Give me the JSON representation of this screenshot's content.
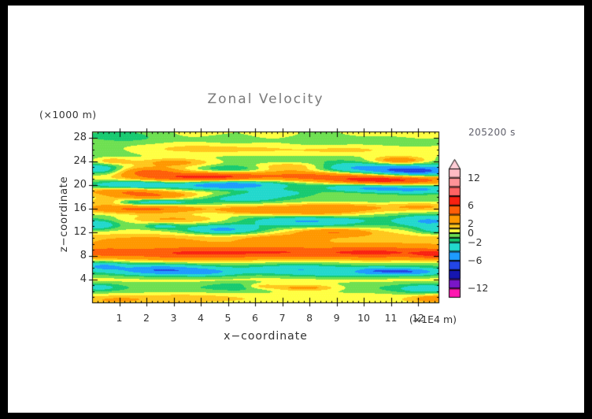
{
  "title": "Zonal Velocity",
  "timestamp": "205200 s",
  "axes": {
    "x": {
      "title": "x−coordinate",
      "unit_label": "(×1E4 m)",
      "min": 0,
      "max": 12.78,
      "tick_values": [
        1,
        2,
        3,
        4,
        5,
        6,
        7,
        8,
        9,
        10,
        11,
        12
      ],
      "tick_labels": [
        "1",
        "2",
        "3",
        "4",
        "5",
        "6",
        "7",
        "8",
        "9",
        "10",
        "11",
        "12"
      ],
      "minor_step": 0.2
    },
    "z": {
      "title": "z−coordinate",
      "unit_label": "(×1000 m)",
      "min": 0,
      "max": 29,
      "tick_values": [
        28,
        24,
        20,
        16,
        12,
        8,
        4
      ],
      "tick_labels": [
        "28",
        "24",
        "20",
        "16",
        "12",
        "8",
        "4"
      ],
      "minor_step": 1
    }
  },
  "colorbar": {
    "labels": [
      {
        "value": 12,
        "text": "12"
      },
      {
        "value": 6,
        "text": "6"
      },
      {
        "value": 2,
        "text": "2"
      },
      {
        "value": 0,
        "text": "0"
      },
      {
        "value": -2,
        "text": "−2"
      },
      {
        "value": -6,
        "text": "−6"
      },
      {
        "value": -12,
        "text": "−12"
      }
    ],
    "arrow": "up"
  },
  "chart_data": {
    "type": "filled_contour",
    "title": "Zonal Velocity",
    "xlabel": "x−coordinate",
    "ylabel": "z−coordinate",
    "x_unit": "×1E4 m",
    "z_unit": "×1000 m",
    "time_label": "205200 s",
    "x_range": [
      0,
      12.78
    ],
    "z_range": [
      0,
      29
    ],
    "value_unit_note": "zonal velocity, contour levels in same units as colorbar labels",
    "levels": [
      -14,
      -12,
      -10,
      -8,
      -6,
      -4,
      -2,
      -1,
      0,
      1,
      2,
      4,
      6,
      8,
      10,
      12,
      14
    ],
    "labeled_levels": [
      12,
      6,
      2,
      0,
      -2,
      -6,
      -12
    ],
    "palette": [
      "#ff17b0",
      "#ff17b0",
      "#7a16c8",
      "#1616b0",
      "#2346e6",
      "#1e9bff",
      "#22d8cd",
      "#17ca70",
      "#6ee051",
      "#ffff42",
      "#ffc71c",
      "#ff9800",
      "#ff5e08",
      "#f92111",
      "#ff6464",
      "#ff9398",
      "#ffbac4",
      "#ffcdd6"
    ],
    "grid_texture": "fine white stipple",
    "field_model": {
      "kind": "sum-of-gaussians",
      "note": "approximation of the depicted velocity field; base_bands=[z0,sigma_z,amp] (x-uniform), blobs=[x0,z0,sigma_x,sigma_z,amp]",
      "base_bands": [
        [
          28.5,
          1.6,
          -0.75
        ],
        [
          25.8,
          0.9,
          0.9
        ],
        [
          24.2,
          0.8,
          -0.9
        ],
        [
          22.8,
          0.6,
          0.5
        ],
        [
          21.5,
          0.8,
          1.1
        ],
        [
          20.0,
          0.6,
          -1.0
        ],
        [
          18.7,
          0.6,
          0.9
        ],
        [
          17.3,
          0.6,
          -0.7
        ],
        [
          16.0,
          0.7,
          1.0
        ],
        [
          14.6,
          0.8,
          -0.9
        ],
        [
          13.2,
          0.9,
          -0.6
        ],
        [
          11.3,
          1.1,
          0.9
        ],
        [
          9.0,
          1.4,
          1.6
        ],
        [
          5.6,
          1.0,
          -1.6
        ],
        [
          4.0,
          0.7,
          1.0
        ],
        [
          2.6,
          0.9,
          -1.1
        ],
        [
          0.9,
          0.9,
          1.0
        ]
      ],
      "blobs": [
        [
          3.6,
          28.6,
          1.3,
          0.9,
          1.2
        ],
        [
          6.8,
          28.2,
          1.1,
          0.9,
          1.3
        ],
        [
          9.9,
          28.4,
          1.3,
          0.9,
          1.2
        ],
        [
          12.4,
          28.3,
          0.9,
          0.8,
          1.1
        ],
        [
          1.6,
          28.0,
          1.2,
          0.9,
          -0.9
        ],
        [
          5.2,
          27.3,
          1.1,
          0.8,
          -0.9
        ],
        [
          8.2,
          27.4,
          1.2,
          0.9,
          -1.1
        ],
        [
          11.2,
          26.9,
          1.4,
          1.0,
          -0.9
        ],
        [
          4.6,
          26.4,
          1.8,
          0.7,
          1.1
        ],
        [
          9.6,
          26.1,
          1.6,
          0.7,
          1.0
        ],
        [
          0.6,
          25.7,
          0.9,
          0.7,
          -0.9
        ],
        [
          0.7,
          24.0,
          0.5,
          0.45,
          2.6
        ],
        [
          3.0,
          23.8,
          1.1,
          0.55,
          3.2
        ],
        [
          11.3,
          24.1,
          0.75,
          0.5,
          4.2
        ],
        [
          7.5,
          23.1,
          1.1,
          0.5,
          2.6
        ],
        [
          0.3,
          22.6,
          0.6,
          0.7,
          -4.0
        ],
        [
          5.1,
          22.7,
          1.0,
          0.5,
          -3.0
        ],
        [
          9.4,
          22.9,
          1.2,
          0.6,
          -4.0
        ],
        [
          11.9,
          22.3,
          1.3,
          0.7,
          -8.0
        ],
        [
          2.1,
          22.2,
          0.8,
          0.5,
          3.4
        ],
        [
          2.9,
          21.2,
          1.2,
          0.55,
          3.4
        ],
        [
          4.9,
          21.3,
          1.2,
          0.6,
          5.0
        ],
        [
          7.8,
          21.5,
          1.0,
          0.6,
          3.2
        ],
        [
          9.9,
          20.9,
          1.1,
          0.6,
          3.6
        ],
        [
          11.5,
          20.7,
          1.5,
          0.7,
          5.5
        ],
        [
          1.5,
          20.0,
          1.0,
          0.55,
          -3.6
        ],
        [
          5.0,
          20.0,
          1.3,
          0.6,
          -5.5
        ],
        [
          9.8,
          19.5,
          1.0,
          0.55,
          -3.0
        ],
        [
          11.9,
          19.2,
          1.4,
          0.6,
          -5.0
        ],
        [
          1.2,
          19.0,
          0.9,
          0.5,
          3.0
        ],
        [
          2.2,
          18.0,
          1.0,
          0.55,
          4.0
        ],
        [
          6.9,
          18.6,
          1.1,
          0.5,
          -3.2
        ],
        [
          5.6,
          17.8,
          0.9,
          0.5,
          -2.6
        ],
        [
          2.3,
          17.0,
          1.2,
          0.5,
          -4.0
        ],
        [
          0.5,
          17.2,
          0.5,
          0.45,
          2.6
        ],
        [
          1.9,
          16.0,
          1.4,
          0.6,
          4.2
        ],
        [
          5.8,
          15.7,
          0.8,
          0.45,
          2.4
        ],
        [
          8.7,
          16.1,
          1.3,
          0.55,
          3.0
        ],
        [
          12.1,
          16.4,
          0.8,
          0.5,
          1.6
        ],
        [
          3.0,
          14.2,
          1.5,
          0.55,
          3.2
        ],
        [
          8.0,
          15.0,
          1.4,
          0.5,
          2.6
        ],
        [
          7.9,
          13.9,
          1.4,
          0.65,
          -3.4
        ],
        [
          12.4,
          13.8,
          0.8,
          0.7,
          -3.4
        ],
        [
          0.2,
          13.2,
          0.5,
          0.6,
          -3.0
        ],
        [
          2.6,
          13.0,
          0.45,
          0.35,
          -2.2
        ],
        [
          4.8,
          12.4,
          1.0,
          0.55,
          -4.6
        ],
        [
          12.6,
          12.3,
          0.5,
          0.5,
          -2.4
        ],
        [
          8.9,
          12.0,
          1.0,
          0.5,
          3.4
        ],
        [
          7.0,
          10.8,
          0.9,
          0.45,
          2.2
        ],
        [
          2.0,
          10.6,
          1.2,
          0.5,
          1.2
        ],
        [
          3.5,
          8.4,
          2.0,
          0.8,
          4.6
        ],
        [
          6.9,
          8.6,
          1.5,
          0.7,
          3.0
        ],
        [
          10.5,
          8.5,
          1.7,
          0.75,
          4.8
        ],
        [
          12.7,
          8.2,
          0.6,
          0.6,
          3.5
        ],
        [
          0.4,
          8.6,
          0.7,
          0.6,
          2.5
        ],
        [
          0.4,
          6.3,
          0.55,
          0.5,
          -3.2
        ],
        [
          2.5,
          5.6,
          1.1,
          0.65,
          -4.6
        ],
        [
          4.3,
          5.2,
          0.8,
          0.5,
          -2.6
        ],
        [
          7.6,
          5.7,
          1.2,
          0.55,
          -2.4
        ],
        [
          9.6,
          4.9,
          1.4,
          0.45,
          -1.8
        ],
        [
          10.4,
          5.5,
          0.5,
          0.4,
          -3.4
        ],
        [
          11.3,
          5.4,
          0.45,
          0.4,
          -3.4
        ],
        [
          12.1,
          5.3,
          0.5,
          0.4,
          -3.0
        ],
        [
          0.3,
          2.7,
          0.5,
          0.5,
          -1.8
        ],
        [
          5.6,
          2.9,
          0.8,
          0.5,
          -1.6
        ],
        [
          12.3,
          2.4,
          0.8,
          0.6,
          -2.4
        ],
        [
          7.8,
          2.6,
          0.9,
          0.4,
          3.4
        ],
        [
          6.2,
          2.9,
          0.5,
          0.35,
          2.6
        ],
        [
          3.3,
          0.9,
          1.2,
          0.5,
          1.0
        ],
        [
          12.6,
          0.8,
          0.5,
          0.45,
          2.8
        ],
        [
          0.9,
          0.5,
          0.8,
          0.5,
          1.4
        ]
      ]
    }
  }
}
